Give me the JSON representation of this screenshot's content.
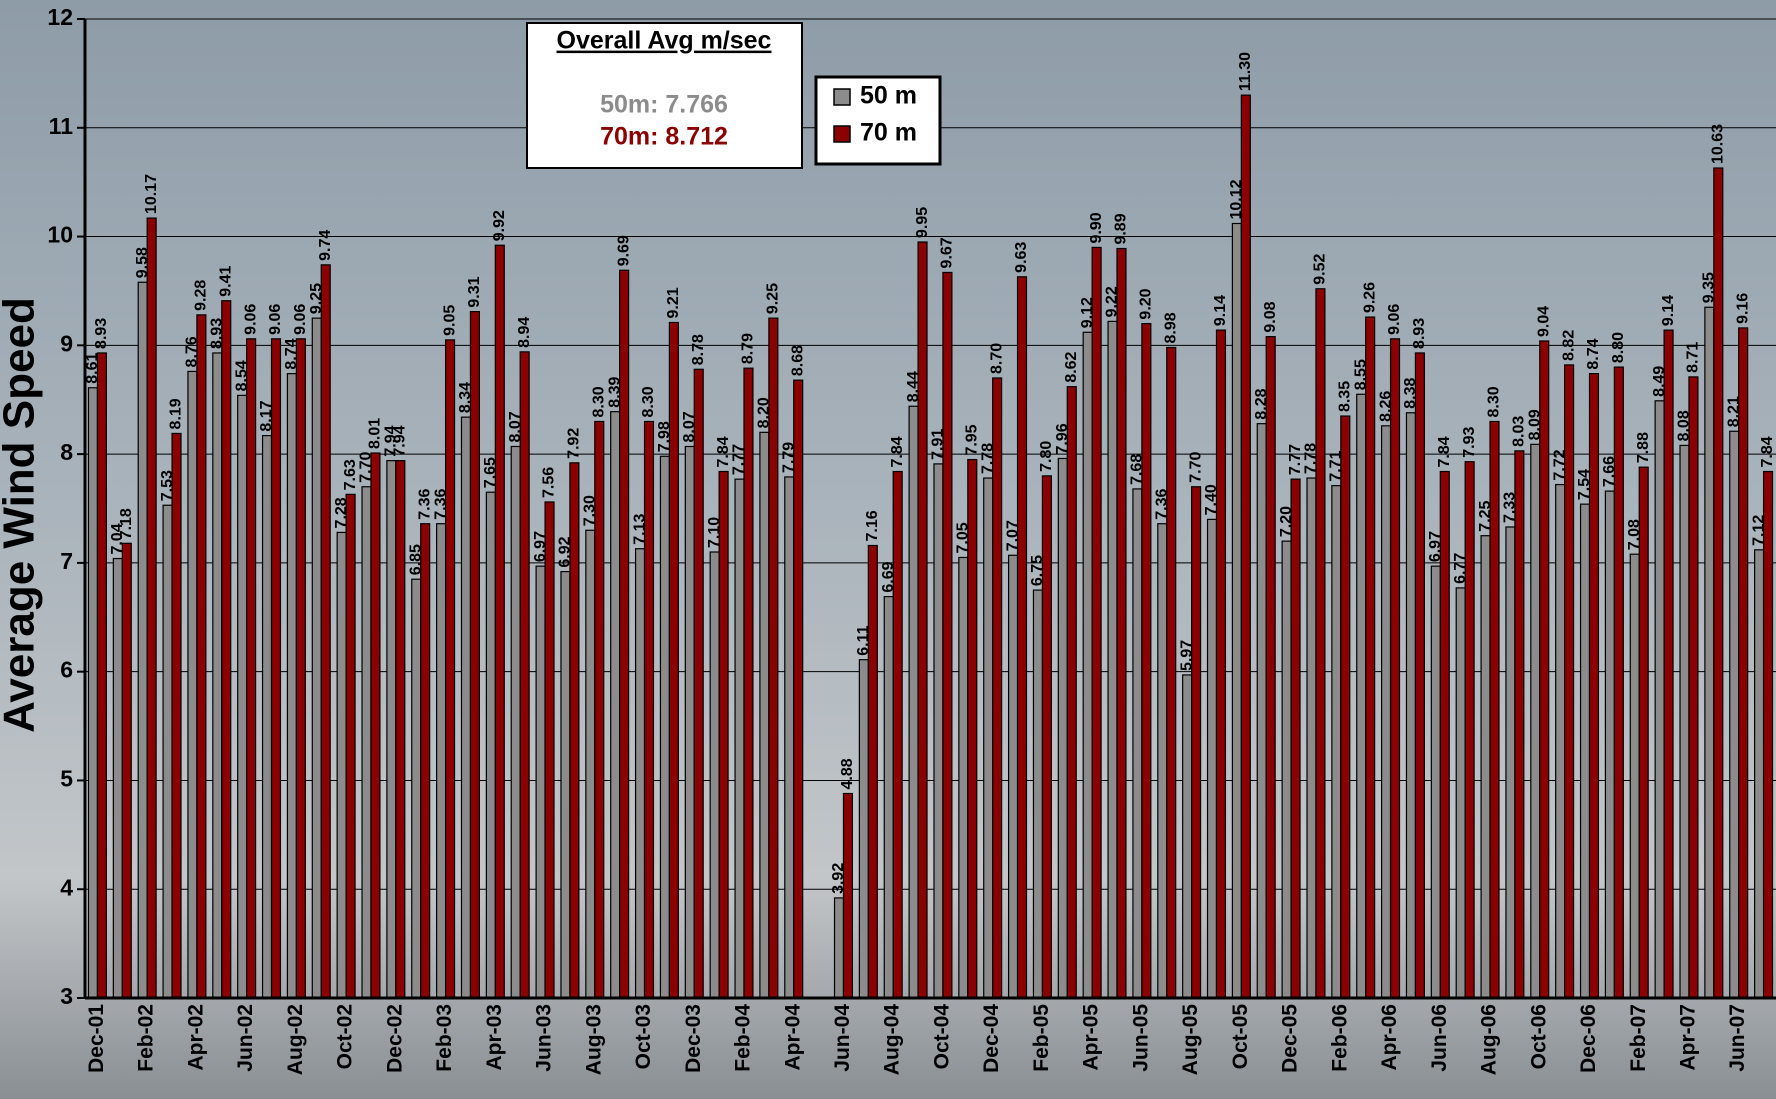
{
  "chart_data": {
    "type": "bar",
    "y_label": "Average Wind Speed",
    "annotation": {
      "title": "Overall Avg m/sec",
      "lines": [
        "50m: 7.766",
        "70m: 8.712"
      ]
    },
    "categories": [
      "Dec-01",
      null,
      "Feb-02",
      null,
      "Apr-02",
      null,
      "Jun-02",
      null,
      "Aug-02",
      null,
      "Oct-02",
      null,
      "Dec-02",
      null,
      "Feb-03",
      null,
      "Apr-03",
      null,
      "Jun-03",
      null,
      "Aug-03",
      null,
      "Oct-03",
      null,
      "Dec-03",
      null,
      "Feb-04",
      null,
      "Apr-04",
      null,
      "Jun-04",
      null,
      "Aug-04",
      null,
      "Oct-04",
      null,
      "Dec-04",
      null,
      "Feb-05",
      null,
      "Apr-05",
      null,
      "Jun-05",
      null,
      "Aug-05",
      null,
      "Oct-05",
      null,
      "Dec-05",
      null,
      "Feb-06",
      null,
      "Apr-06",
      null,
      "Jun-06",
      null,
      "Aug-06",
      null,
      "Oct-06",
      null,
      "Dec-06",
      null,
      "Feb-07",
      null,
      "Apr-07",
      null,
      "Jun-07",
      null
    ],
    "series": [
      {
        "name": "50 m",
        "color": "#8c8c8c",
        "values": [
          8.61,
          7.04,
          9.58,
          7.53,
          8.76,
          8.93,
          8.54,
          8.17,
          8.74,
          9.25,
          7.28,
          7.7,
          7.94,
          6.85,
          7.36,
          8.34,
          7.65,
          8.07,
          6.97,
          6.92,
          7.3,
          8.39,
          7.13,
          7.98,
          8.07,
          7.1,
          7.77,
          8.2,
          7.79,
          null,
          3.92,
          6.11,
          6.69,
          8.44,
          7.91,
          7.05,
          7.78,
          7.07,
          6.75,
          7.96,
          9.12,
          9.22,
          7.68,
          7.36,
          5.97,
          7.4,
          10.12,
          8.28,
          7.2,
          7.78,
          7.71,
          8.55,
          8.26,
          8.38,
          6.97,
          6.77,
          7.25,
          7.33,
          8.09,
          7.72,
          7.54,
          7.66,
          7.08,
          8.49,
          8.08,
          9.35,
          8.21,
          7.12
        ],
        "value_labels": [
          "8.61",
          "7.04",
          "9.58",
          "7.53",
          "8.76",
          "8.93",
          "8.54",
          "8.17",
          "8.74",
          "9.25",
          "7.28",
          "7.70",
          "7.94",
          "6.85",
          "7.36",
          "8.34",
          "7.65",
          "8.07",
          "6.97",
          "6.92",
          "7.30",
          "8.39",
          "7.13",
          "7.98",
          "8.07",
          "7.10",
          "7.77",
          "8.20",
          "7.79",
          null,
          "3.92",
          "6.11",
          "6.69",
          "8.44",
          "7.91",
          "7.05",
          "7.78",
          "7.07",
          "6.75",
          "7.96",
          "9.12",
          "9.22",
          "7.68",
          "7.36",
          "5.97",
          "7.40",
          "10.12",
          "8.28",
          "7.20",
          "7.78",
          "7.71",
          "8.55",
          "8.26",
          "8.38",
          "6.97",
          "6.77",
          "7.25",
          "7.33",
          "8.09",
          "7.72",
          "7.54",
          "7.66",
          "7.08",
          "8.49",
          "8.08",
          "9.35",
          "8.21",
          "7.12"
        ]
      },
      {
        "name": "70 m",
        "color": "#8b0000",
        "values": [
          8.93,
          7.18,
          10.17,
          8.19,
          9.28,
          9.41,
          9.06,
          9.06,
          9.06,
          9.74,
          7.63,
          8.01,
          7.94,
          7.36,
          9.05,
          9.31,
          9.92,
          8.94,
          7.56,
          7.92,
          8.3,
          9.69,
          8.3,
          9.21,
          8.78,
          7.84,
          8.79,
          9.25,
          8.68,
          null,
          4.88,
          7.16,
          7.84,
          9.95,
          9.67,
          7.95,
          8.7,
          9.63,
          7.8,
          8.62,
          9.9,
          9.89,
          9.2,
          8.98,
          7.7,
          9.14,
          11.3,
          9.08,
          7.77,
          9.52,
          8.35,
          9.26,
          9.06,
          8.93,
          7.84,
          7.93,
          8.3,
          8.03,
          9.04,
          8.82,
          8.74,
          8.8,
          7.88,
          9.14,
          8.71,
          10.63,
          9.16,
          7.84
        ],
        "value_labels": [
          "8.93",
          "7.18",
          "10.17",
          "8.19",
          "9.28",
          "9.41",
          "9.06",
          "9.06",
          "9.06",
          "9.74",
          "7.63",
          "8.01",
          "7.94",
          "7.36",
          "9.05",
          "9.31",
          "9.92",
          "8.94",
          "7.56",
          "7.92",
          "8.30",
          "9.69",
          "8.30",
          "9.21",
          "8.78",
          "7.84",
          "8.79",
          "9.25",
          "8.68",
          null,
          "4.88",
          "7.16",
          "7.84",
          "9.95",
          "9.67",
          "7.95",
          "8.70",
          "9.63",
          "7.80",
          "8.62",
          "9.90",
          "9.89",
          "9.20",
          "8.98",
          "7.70",
          "9.14",
          "11.30",
          "9.08",
          "7.77",
          "9.52",
          "8.35",
          "9.26",
          "9.06",
          "8.93",
          "7.84",
          "7.93",
          "8.30",
          "8.03",
          "9.04",
          "8.82",
          "8.74",
          "8.80",
          "7.88",
          "9.14",
          "8.71",
          "10.63",
          "9.16",
          "7.84"
        ]
      }
    ],
    "ylim": [
      3,
      12
    ],
    "yticks": [
      3,
      4,
      5,
      6,
      7,
      8,
      9,
      10,
      11,
      12
    ],
    "grid": true
  }
}
